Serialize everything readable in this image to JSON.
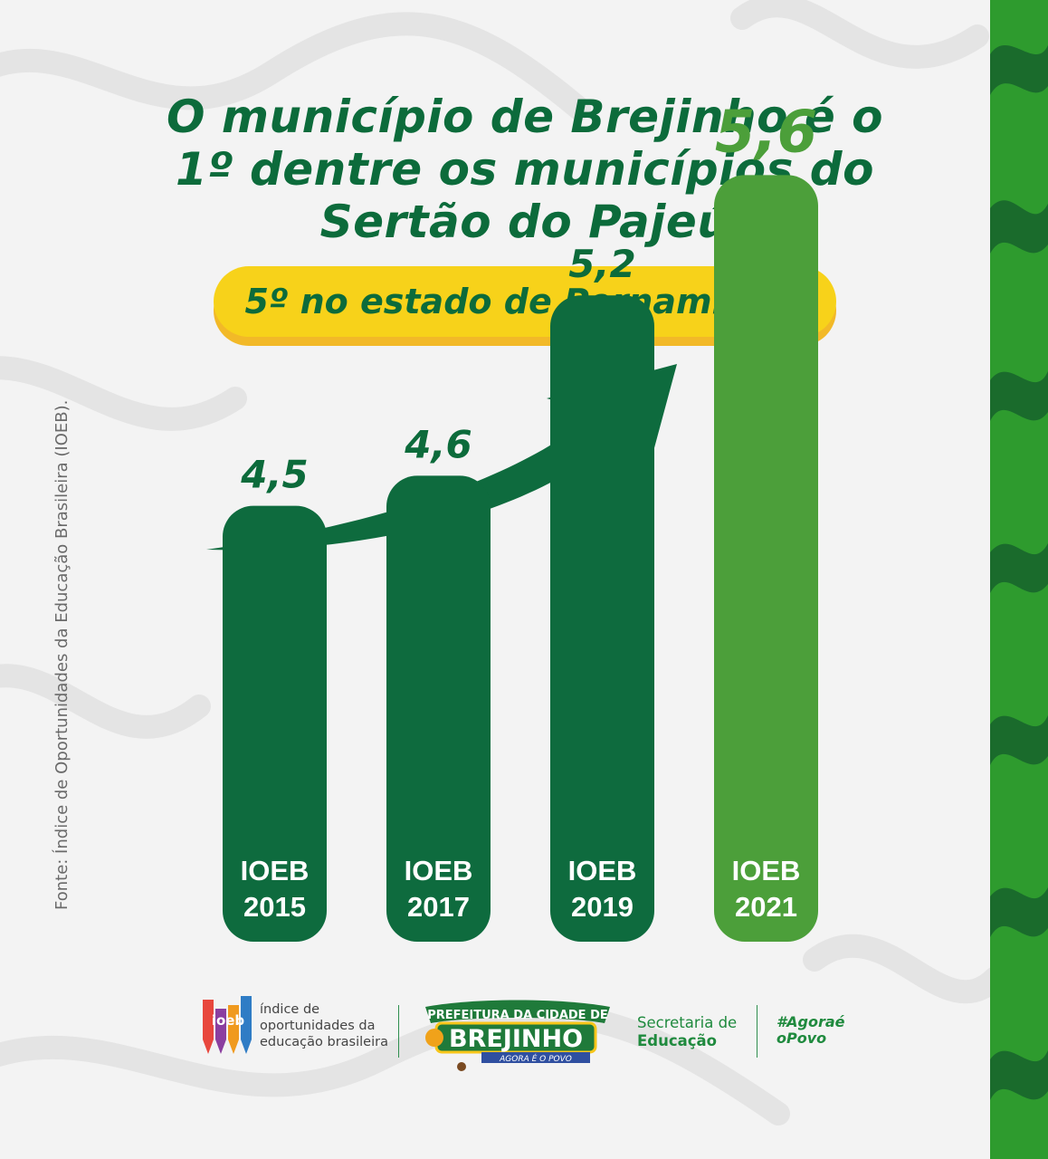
{
  "title_lines": [
    "O município de Brejinho é o",
    "1º dentre os municípios do",
    "Sertão do Pajeú"
  ],
  "subtitle": "5º no estado de Pernambuco",
  "source": "Fonte: Índice de Oportunidades da Educação Brasileira (IOEB).",
  "colors": {
    "dark_green": "#0c6b3b",
    "bar_green": "#0e6b3e",
    "highlight_green": "#4c9f3a",
    "yellow": "#f7d21a",
    "stripe_green": "#2e9b2e"
  },
  "chart_data": {
    "type": "bar",
    "categories": [
      "IOEB\n2015",
      "IOEB\n2017",
      "IOEB\n2019",
      "IOEB\n2021"
    ],
    "category_lines": [
      [
        "IOEB",
        "2015"
      ],
      [
        "IOEB",
        "2017"
      ],
      [
        "IOEB",
        "2019"
      ],
      [
        "IOEB",
        "2021"
      ]
    ],
    "values": [
      4.5,
      4.6,
      5.2,
      5.6
    ],
    "value_labels": [
      "4,5",
      "4,6",
      "5,2",
      "5,6"
    ],
    "highlight_index": 3,
    "trend_arrow": "up-right",
    "grid": false
  },
  "footer": {
    "ioeb_logo_letters": "ioeb",
    "ioeb_text": "índice de\noportunidades da\neducação brasileira",
    "brejinho_top": "PREFEITURA DA CIDADE DE",
    "brejinho_name": "BREJINHO",
    "brejinho_tagline": "AGORA É O POVO",
    "secretaria_line1": "Secretaria de",
    "secretaria_line2": "Educação",
    "hashtag_line1": "#Agoraé",
    "hashtag_line2": "oPovo"
  }
}
